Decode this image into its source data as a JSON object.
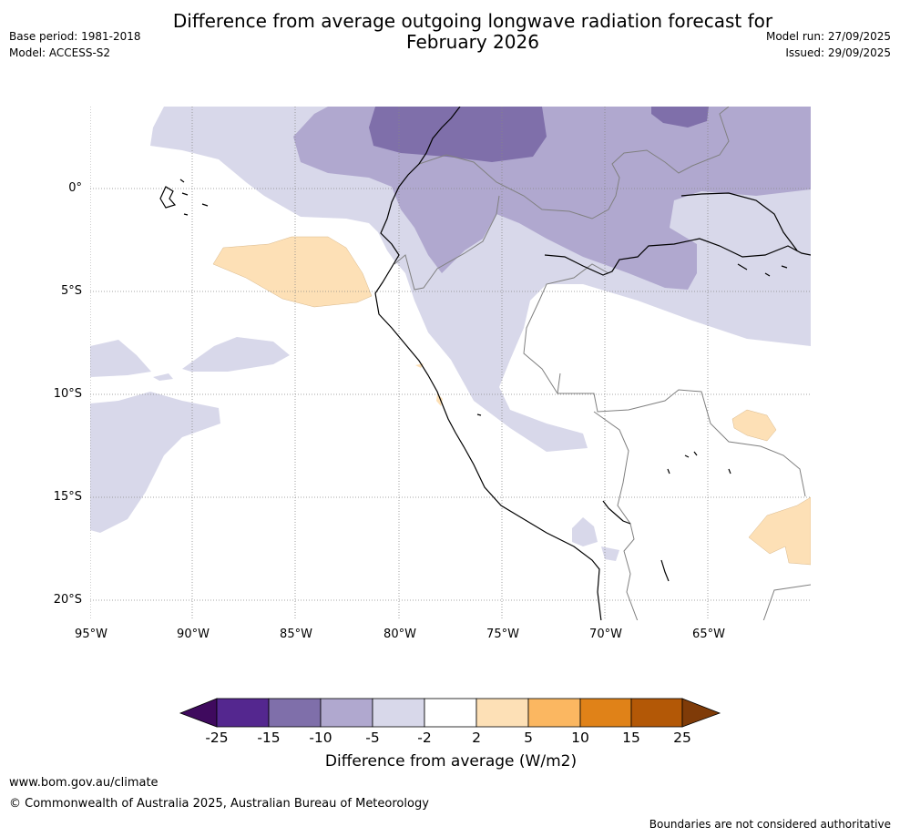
{
  "title": "Difference from average outgoing longwave radiation forecast for February 2026",
  "title_line1": "Difference from average outgoing longwave radiation forecast for",
  "title_line2": "February 2026",
  "meta_left": {
    "base_period": "Base period: 1981-2018",
    "model": "Model: ACCESS-S2"
  },
  "meta_right": {
    "model_run": "Model run: 27/09/2025",
    "issued": "Issued: 29/09/2025"
  },
  "map": {
    "lon_range": [
      -95,
      -60
    ],
    "lat_range": [
      -21,
      4
    ],
    "lat_labels": [
      "0°",
      "5°S",
      "10°S",
      "15°S",
      "20°S"
    ],
    "lon_labels": [
      "95°W",
      "90°W",
      "85°W",
      "80°W",
      "75°W",
      "70°W",
      "65°W"
    ]
  },
  "colorbar": {
    "title": "Difference from average (W/m2)",
    "ticks": [
      "-25",
      "-15",
      "-10",
      "-5",
      "-2",
      "2",
      "5",
      "10",
      "15",
      "25"
    ],
    "colors": [
      "#3f0a5e",
      "#54278f",
      "#7f6faa",
      "#b0a8cf",
      "#d8d8ea",
      "#ffffff",
      "#fde0b6",
      "#fbb761",
      "#e08218",
      "#b35806",
      "#7f3b08"
    ]
  },
  "footer": {
    "url": "www.bom.gov.au/climate",
    "copyright": "© Commonwealth of Australia 2025, Australian Bureau of Meteorology",
    "disclaimer": "Boundaries are not considered authoritative"
  }
}
